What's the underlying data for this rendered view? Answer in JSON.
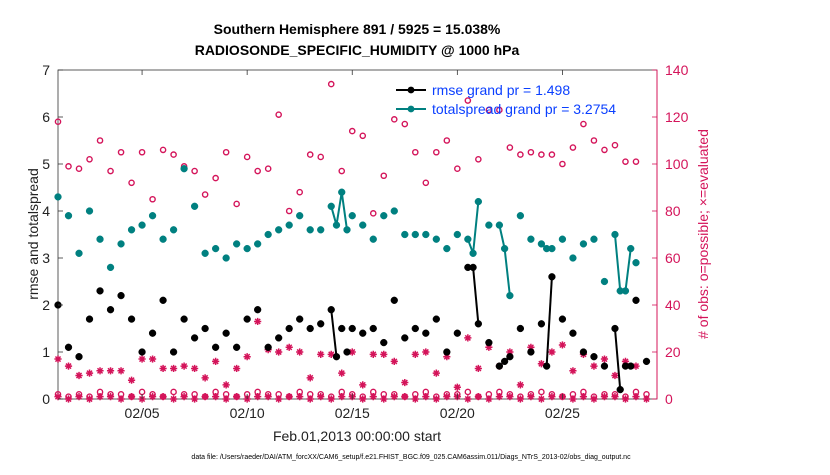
{
  "chart_data": {
    "type": "scatter",
    "title_line1": "Southern Hemisphere 891 / 5925 = 15.038%",
    "title_line2": "RADIOSONDE_SPECIFIC_HUMIDITY @ 1000 hPa",
    "xlabel": "Feb.01,2013 00:00:00 start",
    "ylabel_left": "rmse and totalspread",
    "ylabel_right": "# of obs: o=possible; ×=evaluated",
    "footnote": "data file: /Users/raeder/DAI/ATM_forcXX/CAM6_setup/f.e21.FHIST_BGC.f09_025.CAM6assim.011/Diags_NTrS_2013-02/obs_diag_output.nc",
    "xlim": [
      1.0,
      29.5
    ],
    "ylim_left": [
      0,
      7
    ],
    "ylim_right": [
      0,
      140
    ],
    "x_ticks": [
      5,
      10,
      15,
      20,
      25
    ],
    "x_tick_labels": [
      "02/05",
      "02/10",
      "02/15",
      "02/20",
      "02/25"
    ],
    "y_left_ticks": [
      0,
      1,
      2,
      3,
      4,
      5,
      6,
      7
    ],
    "y_right_ticks": [
      0,
      20,
      40,
      60,
      80,
      100,
      120,
      140
    ],
    "grid": false,
    "legend_position": "top-right",
    "colors": {
      "rmse": "#000000",
      "spread": "#008080",
      "obs": "#d4145a",
      "legend_text": "#0a3fff"
    },
    "series": [
      {
        "name": "rmse grand pr = 1.498",
        "axis": "left",
        "x": [
          1.0,
          1.5,
          2.0,
          2.5,
          3.0,
          3.5,
          4.0,
          4.5,
          5.0,
          5.5,
          6.0,
          6.5,
          7.0,
          7.5,
          8.0,
          8.5,
          9.0,
          9.5,
          10.0,
          10.5,
          11.0,
          11.5,
          12.0,
          12.5,
          13.0,
          13.5,
          14.0,
          14.25,
          14.5,
          14.75,
          15.0,
          15.5,
          16.0,
          16.5,
          17.0,
          17.5,
          18.0,
          18.5,
          19.0,
          19.5,
          20.0,
          20.5,
          20.75,
          21.0,
          21.5,
          22.0,
          22.25,
          22.5,
          23.0,
          23.5,
          24.0,
          24.25,
          24.5,
          25.0,
          25.5,
          26.0,
          26.5,
          27.0,
          27.5,
          27.75,
          28.0,
          28.25,
          28.5,
          29.0
        ],
        "values": [
          2.0,
          1.1,
          0.9,
          1.7,
          2.3,
          1.9,
          2.2,
          1.7,
          1.0,
          1.4,
          2.1,
          1.0,
          1.7,
          1.3,
          1.5,
          1.1,
          1.4,
          1.1,
          1.7,
          1.9,
          1.1,
          1.3,
          1.5,
          1.7,
          1.5,
          1.6,
          1.9,
          0.9,
          1.5,
          1.0,
          1.5,
          1.4,
          1.5,
          1.2,
          2.1,
          1.3,
          1.5,
          1.4,
          1.7,
          1.0,
          1.4,
          2.8,
          2.8,
          1.6,
          1.2,
          0.7,
          0.8,
          0.9,
          1.5,
          1.0,
          1.6,
          0.7,
          2.6,
          1.7,
          1.4,
          1.0,
          0.9,
          0.7,
          1.5,
          0.2,
          0.7,
          0.7,
          2.1,
          0.8
        ],
        "segments": [
          [
            14.0,
            14.25
          ],
          [
            20.75,
            21.0
          ],
          [
            22.25,
            22.5
          ],
          [
            24.25,
            24.5
          ],
          [
            27.5,
            27.75
          ],
          [
            28.0,
            28.25
          ]
        ]
      },
      {
        "name": "totalspread grand pr = 3.2754",
        "axis": "left",
        "x": [
          1.0,
          1.5,
          2.0,
          2.5,
          3.0,
          3.5,
          4.0,
          4.5,
          5.0,
          5.5,
          6.0,
          6.5,
          7.0,
          7.5,
          8.0,
          8.5,
          9.0,
          9.5,
          10.0,
          10.5,
          11.0,
          11.5,
          12.0,
          12.5,
          13.0,
          13.5,
          14.0,
          14.25,
          14.5,
          14.75,
          15.0,
          15.5,
          16.0,
          16.5,
          17.0,
          17.5,
          18.0,
          18.5,
          19.0,
          19.5,
          20.0,
          20.5,
          20.75,
          21.0,
          21.5,
          22.0,
          22.25,
          22.5,
          23.0,
          23.5,
          24.0,
          24.25,
          24.5,
          25.0,
          25.5,
          26.0,
          26.5,
          27.0,
          27.5,
          27.75,
          28.0,
          28.25,
          28.5
        ],
        "values": [
          4.3,
          3.9,
          3.1,
          4.0,
          3.4,
          2.8,
          3.3,
          3.6,
          3.7,
          3.9,
          3.4,
          3.6,
          4.9,
          4.1,
          3.1,
          3.2,
          3.0,
          3.3,
          3.2,
          3.3,
          3.5,
          3.6,
          3.7,
          3.9,
          3.6,
          3.6,
          4.1,
          3.7,
          4.4,
          3.6,
          3.9,
          3.7,
          3.4,
          3.9,
          4.0,
          3.5,
          3.5,
          3.5,
          3.4,
          3.2,
          3.5,
          3.4,
          3.1,
          4.2,
          3.7,
          3.7,
          3.2,
          2.2,
          3.9,
          3.4,
          3.3,
          3.2,
          3.2,
          3.4,
          3.0,
          3.3,
          3.4,
          2.5,
          3.5,
          2.3,
          2.3,
          3.2,
          2.9
        ],
        "segments": [
          [
            14.0,
            14.25,
            14.5,
            14.75
          ],
          [
            20.5,
            20.75,
            21.0
          ],
          [
            22.0,
            22.25,
            22.5
          ],
          [
            24.0,
            24.25,
            24.5
          ],
          [
            27.5,
            27.75,
            28.0,
            28.25
          ]
        ]
      },
      {
        "axis": "right",
        "marker": "circle",
        "x": [
          1.0,
          1.5,
          2.0,
          2.5,
          3.0,
          3.5,
          4.0,
          4.5,
          5.0,
          5.5,
          6.0,
          6.5,
          7.0,
          7.5,
          8.0,
          8.5,
          9.0,
          9.5,
          10.0,
          10.5,
          11.0,
          11.5,
          12.0,
          12.5,
          13.0,
          13.5,
          14.0,
          14.5,
          15.0,
          15.5,
          16.0,
          16.5,
          17.0,
          17.5,
          18.0,
          18.5,
          19.0,
          19.5,
          20.0,
          20.5,
          21.0,
          21.5,
          22.0,
          22.5,
          23.0,
          23.5,
          24.0,
          24.5,
          25.0,
          25.5,
          26.0,
          26.5,
          27.0,
          27.5,
          28.0,
          28.5
        ],
        "values": [
          118,
          99,
          98,
          102,
          110,
          97,
          105,
          92,
          105,
          85,
          106,
          104,
          99,
          97,
          87,
          94,
          105,
          83,
          103,
          97,
          98,
          121,
          80,
          88,
          104,
          103,
          134,
          97,
          114,
          112,
          79,
          95,
          119,
          117,
          105,
          92,
          105,
          110,
          98,
          127,
          102,
          123,
          123,
          107,
          104,
          105,
          104,
          104,
          100,
          107,
          117,
          110,
          106,
          108,
          101,
          101
        ]
      },
      {
        "axis": "right",
        "marker": "circle",
        "x": [
          1.0,
          1.5,
          2.0,
          2.5,
          3.0,
          3.5,
          4.0,
          4.5,
          5.0,
          5.5,
          6.0,
          6.5,
          7.0,
          7.5,
          8.0,
          8.5,
          9.0,
          9.5,
          10.0,
          10.5,
          11.0,
          11.5,
          12.0,
          12.5,
          13.0,
          13.5,
          14.0,
          14.5,
          15.0,
          15.5,
          16.0,
          16.5,
          17.0,
          17.5,
          18.0,
          18.5,
          19.0,
          19.5,
          20.0,
          20.5,
          21.0,
          21.5,
          22.0,
          22.5,
          23.0,
          23.5,
          24.0,
          24.5,
          25.0,
          25.5,
          26.0,
          26.5,
          27.0,
          27.5,
          28.0,
          28.5,
          29.0
        ],
        "values": [
          2,
          1,
          2,
          1,
          3,
          2,
          2,
          1,
          3,
          2,
          1,
          3,
          2,
          2,
          1,
          3,
          2,
          1,
          2,
          3,
          2,
          2,
          1,
          3,
          2,
          2,
          1,
          3,
          2,
          1,
          3,
          2,
          2,
          1,
          2,
          3,
          1,
          2,
          2,
          3,
          1,
          2,
          3,
          2,
          1,
          2,
          3,
          2,
          1,
          2,
          3,
          1,
          2,
          2,
          1,
          3,
          2
        ]
      },
      {
        "axis": "right",
        "marker": "asterisk",
        "x": [
          1.0,
          1.5,
          2.0,
          2.5,
          3.0,
          3.5,
          4.0,
          4.5,
          5.0,
          5.5,
          6.0,
          6.5,
          7.0,
          7.5,
          8.0,
          8.5,
          9.0,
          9.5,
          10.0,
          10.5,
          11.0,
          11.5,
          12.0,
          12.5,
          13.0,
          13.5,
          14.0,
          14.5,
          15.0,
          15.5,
          16.0,
          16.5,
          17.0,
          17.5,
          18.0,
          18.5,
          19.0,
          19.5,
          20.0,
          20.5,
          21.0,
          21.5,
          22.0,
          22.5,
          23.0,
          23.5,
          24.0,
          24.5,
          25.0,
          25.5,
          26.0,
          26.5,
          27.0,
          27.5,
          28.0,
          28.5
        ],
        "values": [
          17,
          14,
          10,
          11,
          12,
          12,
          12,
          8,
          17,
          17,
          13,
          13,
          14,
          13,
          9,
          16,
          6,
          13,
          18,
          33,
          21,
          20,
          22,
          20,
          9,
          19,
          19,
          11,
          20,
          6,
          19,
          19,
          16,
          7,
          19,
          20,
          11,
          18,
          5,
          26,
          13,
          22,
          14,
          20,
          6,
          22,
          15,
          20,
          23,
          12,
          19,
          14,
          17,
          10,
          16,
          14
        ]
      },
      {
        "axis": "right",
        "marker": "asterisk",
        "x": [
          1.0,
          1.5,
          2.0,
          2.5,
          3.0,
          3.5,
          4.0,
          4.5,
          5.0,
          5.5,
          6.0,
          6.5,
          7.0,
          7.5,
          8.0,
          8.5,
          9.0,
          9.5,
          10.0,
          10.5,
          11.0,
          11.5,
          12.0,
          12.5,
          13.0,
          13.5,
          14.0,
          14.5,
          15.0,
          15.5,
          16.0,
          16.5,
          17.0,
          17.5,
          18.0,
          18.5,
          19.0,
          19.5,
          20.0,
          20.5,
          21.0,
          21.5,
          22.0,
          22.5,
          23.0,
          23.5,
          24.0,
          24.5,
          25.0,
          25.5,
          26.0,
          26.5,
          27.0,
          27.5,
          28.0,
          28.5,
          29.0
        ],
        "values": [
          1,
          0,
          1,
          0,
          1,
          1,
          0,
          1,
          0,
          1,
          1,
          0,
          1,
          0,
          1,
          1,
          0,
          1,
          0,
          1,
          1,
          0,
          1,
          1,
          0,
          1,
          0,
          1,
          1,
          0,
          1,
          0,
          1,
          1,
          0,
          1,
          0,
          1,
          1,
          0,
          1,
          0,
          1,
          1,
          0,
          1,
          0,
          1,
          1,
          0,
          1,
          0,
          1,
          1,
          0,
          1,
          0
        ]
      }
    ]
  }
}
